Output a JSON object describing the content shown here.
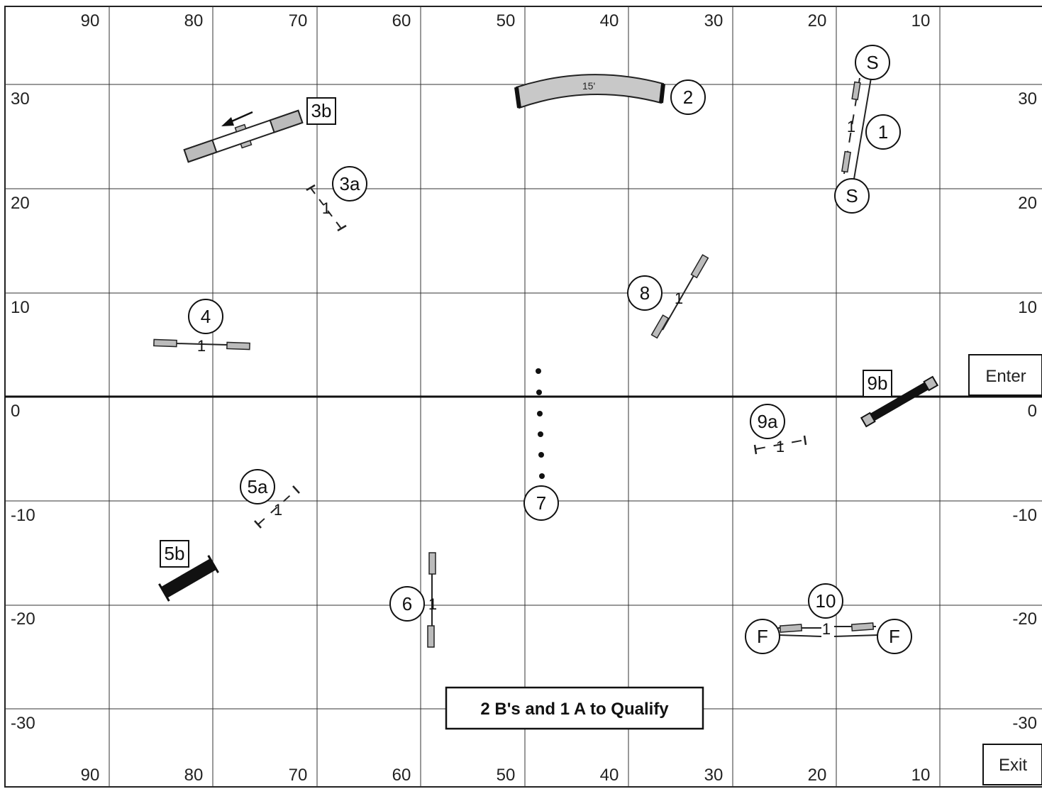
{
  "course": {
    "x_labels": [
      "90",
      "80",
      "70",
      "60",
      "50",
      "40",
      "30",
      "20",
      "10"
    ],
    "y_labels_left": [
      "30",
      "20",
      "10",
      "0",
      "-10",
      "-20",
      "-30"
    ],
    "y_labels_right": [
      "30",
      "20",
      "10",
      "0",
      "-10",
      "-20",
      "-30"
    ],
    "tunnel_length": "15'",
    "jump_marker": "1",
    "qualify_note": "2 B's and 1 A to Qualify",
    "enter_label": "Enter",
    "exit_label": "Exit"
  },
  "markers": {
    "start": "S",
    "finish": "F",
    "m1": "1",
    "m2": "2",
    "m3a": "3a",
    "m3b": "3b",
    "m4": "4",
    "m5a": "5a",
    "m5b": "5b",
    "m6": "6",
    "m7": "7",
    "m8": "8",
    "m9a": "9a",
    "m9b": "9b",
    "m10": "10"
  }
}
